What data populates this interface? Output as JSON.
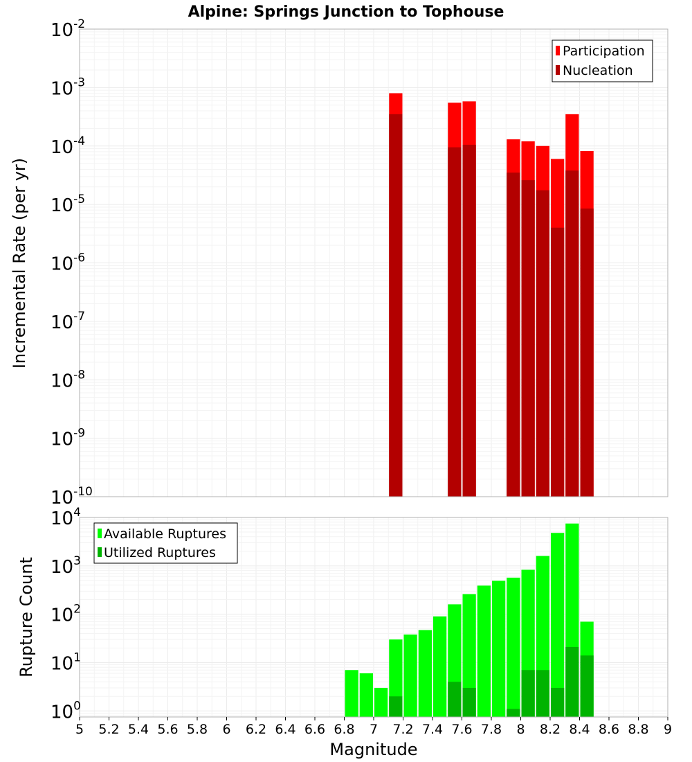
{
  "chart_data": [
    {
      "type": "bar",
      "title": "Alpine: Springs Junction to Tophouse",
      "xlabel": "Magnitude",
      "ylabel": "Incremental Rate (per yr)",
      "y_scale": "log",
      "xlim": [
        5,
        9
      ],
      "ylim": [
        1e-10,
        0.01
      ],
      "grid": true,
      "legend_position": "top-right",
      "x_ticks": [
        "5",
        "5.2",
        "5.4",
        "5.6",
        "5.8",
        "6",
        "6.2",
        "6.4",
        "6.6",
        "6.8",
        "7",
        "7.2",
        "7.4",
        "7.6",
        "7.8",
        "8",
        "8.2",
        "8.4",
        "8.6",
        "8.8",
        "9"
      ],
      "y_ticks": [
        {
          "base": "10",
          "exp": "-2"
        },
        {
          "base": "10",
          "exp": "-3"
        },
        {
          "base": "10",
          "exp": "-4"
        },
        {
          "base": "10",
          "exp": "-5"
        },
        {
          "base": "10",
          "exp": "-6"
        },
        {
          "base": "10",
          "exp": "-7"
        },
        {
          "base": "10",
          "exp": "-8"
        },
        {
          "base": "10",
          "exp": "-9"
        },
        {
          "base": "10",
          "exp": "-10"
        }
      ],
      "bin_width": 0.1,
      "x": [
        7.15,
        7.55,
        7.65,
        7.95,
        8.05,
        8.15,
        8.25,
        8.35,
        8.45
      ],
      "series": [
        {
          "name": "Participation",
          "color": "#ff0000",
          "values": [
            0.0008,
            0.00055,
            0.00058,
            0.00013,
            0.00012,
            0.0001,
            6e-05,
            0.00035,
            8.2e-05
          ]
        },
        {
          "name": "Nucleation",
          "color": "#b30000",
          "values": [
            0.00035,
            9.5e-05,
            0.000105,
            3.5e-05,
            2.6e-05,
            1.75e-05,
            4e-06,
            3.8e-05,
            8.5e-06
          ]
        }
      ]
    },
    {
      "type": "bar",
      "xlabel": "Magnitude",
      "ylabel": "Rupture Count",
      "y_scale": "log",
      "xlim": [
        5,
        9
      ],
      "ylim": [
        0.75,
        10000
      ],
      "grid": true,
      "legend_position": "top-left",
      "y_ticks": [
        {
          "value": 10000,
          "base": "10",
          "exp": "4"
        },
        {
          "value": 1000,
          "base": "10",
          "exp": "3"
        },
        {
          "value": 100,
          "base": "10",
          "exp": "2"
        },
        {
          "value": 10,
          "base": "10",
          "exp": "1"
        },
        {
          "value": 1,
          "base": "10",
          "exp": "0"
        }
      ],
      "bin_width": 0.1,
      "series": [
        {
          "name": "Available Ruptures",
          "color": "#00ff00",
          "x": [
            6.85,
            6.95,
            7.05,
            7.15,
            7.25,
            7.35,
            7.45,
            7.55,
            7.65,
            7.75,
            7.85,
            7.95,
            8.05,
            8.15,
            8.25,
            8.35,
            8.45
          ],
          "values": [
            7,
            6,
            3,
            30,
            38,
            47,
            90,
            160,
            260,
            390,
            490,
            570,
            830,
            1600,
            4800,
            7500,
            70
          ]
        },
        {
          "name": "Utilized Ruptures",
          "color": "#00b300",
          "x": [
            7.15,
            7.55,
            7.65,
            7.95,
            8.05,
            8.15,
            8.25,
            8.35,
            8.45
          ],
          "values": [
            2,
            4,
            3,
            1.1,
            7,
            7,
            3,
            21,
            14
          ]
        }
      ]
    }
  ]
}
